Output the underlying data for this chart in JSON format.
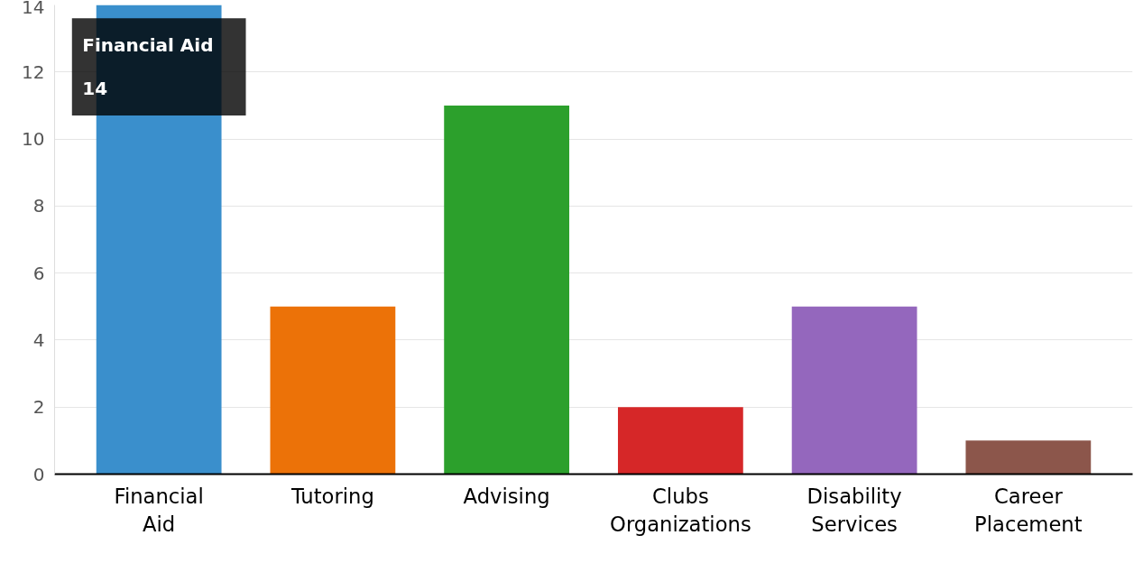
{
  "chart_data": {
    "type": "bar",
    "categories": [
      "Financial Aid",
      "Tutoring",
      "Advising",
      "Clubs Organizations",
      "Disability Services",
      "Career Placement"
    ],
    "values": [
      14,
      5,
      11,
      2,
      5,
      1
    ],
    "colors": [
      "#3a8fcc",
      "#ec7208",
      "#2ca02c",
      "#d62728",
      "#9467bd",
      "#8c564b"
    ],
    "ylim": [
      0,
      14
    ],
    "yticks": [
      0,
      2,
      4,
      6,
      8,
      10,
      12,
      14
    ],
    "grid": "y",
    "annotations": [
      "Financial Aid",
      "14"
    ]
  }
}
